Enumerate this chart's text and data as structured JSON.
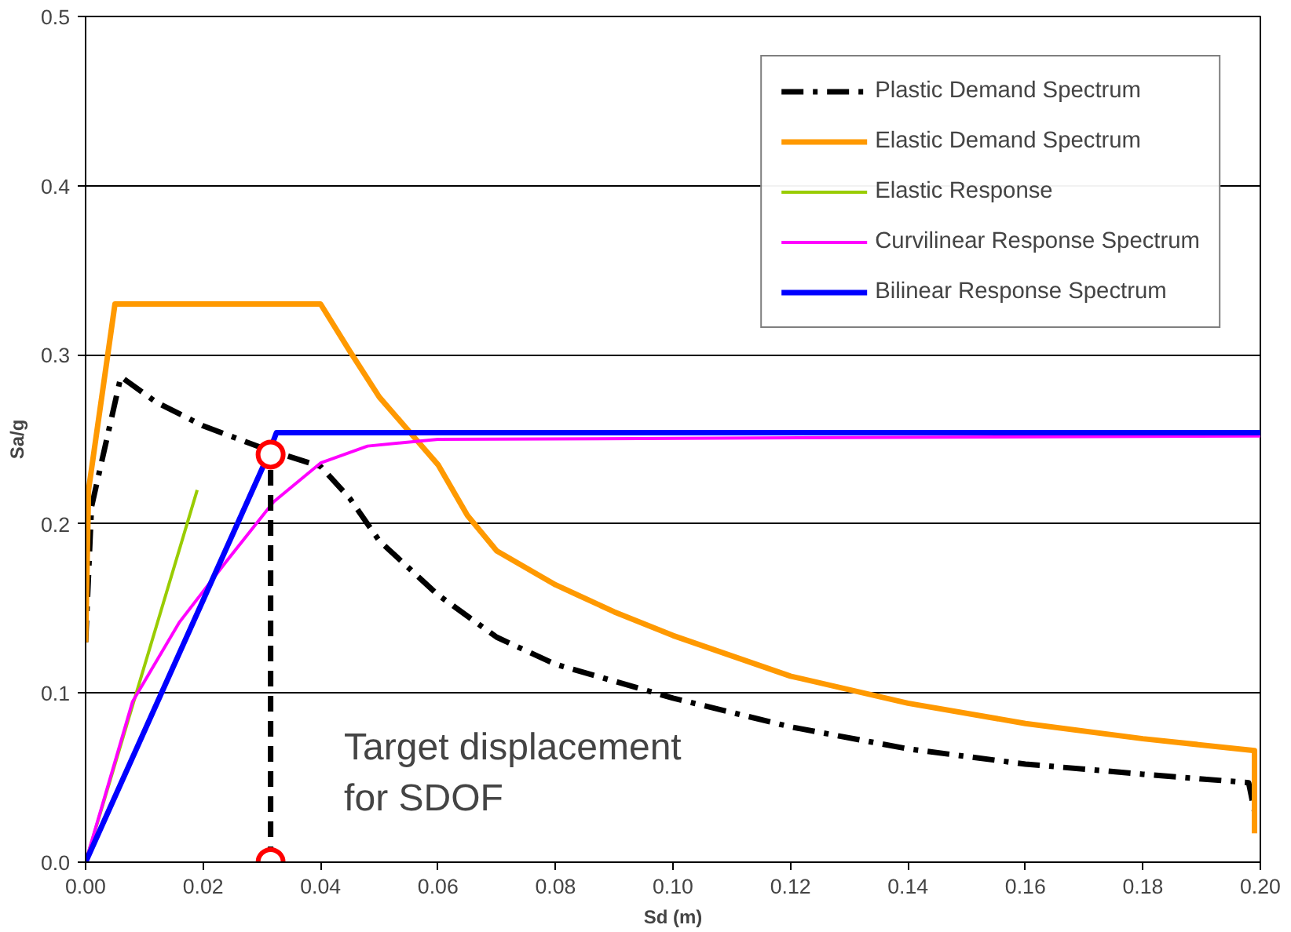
{
  "chart_data": {
    "type": "line",
    "xlabel": "Sd (m)",
    "ylabel": "Sa/g",
    "xlim": [
      0,
      0.2
    ],
    "ylim": [
      0,
      0.5
    ],
    "xticks": [
      {
        "value": 0,
        "label": "0.00"
      },
      {
        "value": 0.02,
        "label": "0.02"
      },
      {
        "value": 0.04,
        "label": "0.04"
      },
      {
        "value": 0.06,
        "label": "0.06"
      },
      {
        "value": 0.08,
        "label": "0.08"
      },
      {
        "value": 0.1,
        "label": "0.10"
      },
      {
        "value": 0.12,
        "label": "0.12"
      },
      {
        "value": 0.14,
        "label": "0.14"
      },
      {
        "value": 0.16,
        "label": "0.16"
      },
      {
        "value": 0.18,
        "label": "0.18"
      },
      {
        "value": 0.2,
        "label": "0.20"
      }
    ],
    "yticks": [
      {
        "value": 0,
        "label": "0.0"
      },
      {
        "value": 0.1,
        "label": "0.1"
      },
      {
        "value": 0.2,
        "label": "0.2"
      },
      {
        "value": 0.3,
        "label": "0.3"
      },
      {
        "value": 0.4,
        "label": "0.4"
      },
      {
        "value": 0.5,
        "label": "0.5"
      }
    ],
    "grid": "y",
    "legend": "top right",
    "marker": "none",
    "series": [
      {
        "name": "Plastic Demand Spectrum",
        "color": "#000000",
        "line_style": "dashdot",
        "x": [
          0,
          0.001,
          0.006,
          0.012,
          0.02,
          0.03,
          0.04,
          0.045,
          0.05,
          0.06,
          0.07,
          0.08,
          0.1,
          0.12,
          0.14,
          0.16,
          0.18,
          0.198,
          0.199
        ],
        "values": [
          0.13,
          0.21,
          0.287,
          0.272,
          0.258,
          0.245,
          0.234,
          0.215,
          0.19,
          0.158,
          0.133,
          0.117,
          0.097,
          0.08,
          0.067,
          0.058,
          0.052,
          0.047,
          0.03
        ]
      },
      {
        "name": "Elastic Demand Spectrum",
        "color": "#ff9900",
        "x": [
          0,
          0.0005,
          0.005,
          0.04,
          0.045,
          0.05,
          0.055,
          0.06,
          0.065,
          0.07,
          0.08,
          0.09,
          0.1,
          0.12,
          0.14,
          0.16,
          0.18,
          0.199,
          0.199
        ],
        "values": [
          0.13,
          0.22,
          0.33,
          0.33,
          0.302,
          0.275,
          0.255,
          0.235,
          0.205,
          0.184,
          0.164,
          0.148,
          0.134,
          0.11,
          0.094,
          0.082,
          0.073,
          0.066,
          0.017
        ]
      },
      {
        "name": "Elastic Response",
        "color": "#99cc00",
        "x": [
          0,
          0.019
        ],
        "values": [
          0,
          0.22
        ]
      },
      {
        "name": "Curvilinear Response Spectrum",
        "color": "#ff00ff",
        "x": [
          0,
          0.008,
          0.016,
          0.024,
          0.032,
          0.04,
          0.048,
          0.06,
          0.2
        ],
        "values": [
          0,
          0.095,
          0.142,
          0.178,
          0.213,
          0.236,
          0.246,
          0.25,
          0.252
        ]
      },
      {
        "name": "Bilinear Response Spectrum",
        "color": "#0000ff",
        "x": [
          0,
          0.031,
          0.0325,
          0.2
        ],
        "values": [
          0,
          0.24,
          0.254,
          0.254
        ]
      },
      {
        "color": "#000000",
        "line_style": "dashed",
        "x": [
          0.0315,
          0.0315
        ],
        "values": [
          0,
          0.241
        ]
      },
      {
        "type": "scatter",
        "color": "#ff0000",
        "marker": "circle",
        "x": [
          0.0315,
          0.0315
        ],
        "values": [
          0.241,
          0
        ]
      }
    ],
    "annotations": [
      "Target displacement\nfor SDOF"
    ]
  }
}
